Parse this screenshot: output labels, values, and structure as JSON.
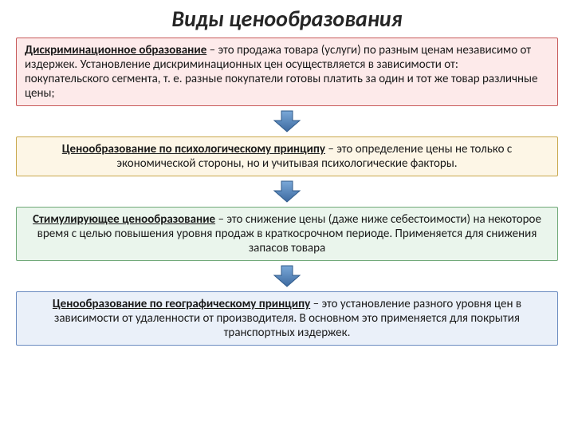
{
  "title": {
    "text": "Виды ценообразования",
    "fontsize": 28,
    "color": "#262626"
  },
  "body_fontsize": 15,
  "text_color": "#1a1a1a",
  "boxes": [
    {
      "lead": "Дискриминационное образование",
      "rest": " – это продажа товара (услуги) по разным ценам независимо от издержек. Установление дискриминационных цен осуществляется в зависимости от:\nпокупательского сегмента, т. е. разные покупатели готовы платить за один и тот же товар различные цены;",
      "bg": "#fdeaea",
      "border": "#c85a5a",
      "align": "left"
    },
    {
      "lead": "Ценообразование по психологическому принципу",
      "rest": " – это определение цены не только с экономической стороны, но и учитывая психологические факторы.",
      "bg": "#fdf6e6",
      "border": "#c9a84d",
      "align": "center"
    },
    {
      "lead": "Стимулирующее ценообразование",
      "rest": " – это снижение цены (даже ниже себестоимости) на некоторое время с целью повышения уровня продаж в краткосрочном периоде. Применяется для снижения запасов товара",
      "bg": "#eaf5ec",
      "border": "#6fa877",
      "align": "center"
    },
    {
      "lead": "Ценообразование по географическому принципу",
      "rest": " – это установление разного уровня цен в зависимости от удаленности от производителя. В основном это применяется для покрытия транспортных издержек.",
      "bg": "#eaf0f9",
      "border": "#6a8bc0",
      "align": "center"
    }
  ],
  "arrow": {
    "fill_top": "#7aa8d8",
    "fill_bottom": "#3d6aa0",
    "stroke": "#2f5a8a",
    "width": 40,
    "height": 30
  }
}
